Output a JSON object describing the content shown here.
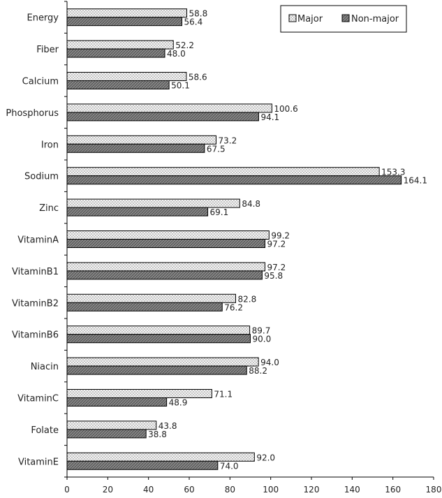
{
  "chart_data": {
    "type": "bar",
    "orientation": "horizontal",
    "categories": [
      "Energy",
      "Fiber",
      "Calcium",
      "Phosphorus",
      "Iron",
      "Sodium",
      "Zinc",
      "VitaminA",
      "VitaminB1",
      "VitaminB2",
      "VitaminB6",
      "Niacin",
      "VitaminC",
      "Folate",
      "VitaminE"
    ],
    "series": [
      {
        "name": "Major",
        "values": [
          58.8,
          52.2,
          58.6,
          100.6,
          73.2,
          153.3,
          84.8,
          99.2,
          97.2,
          82.8,
          89.7,
          94.0,
          71.1,
          43.8,
          92.0
        ],
        "labels": [
          "58.8",
          "52.2",
          "58.6",
          "100.6",
          "73.2",
          "153.3",
          "84.8",
          "99.2",
          "97.2",
          "82.8",
          "89.7",
          "94.0",
          "71.1",
          "43.8",
          "92.0"
        ]
      },
      {
        "name": "Non-major",
        "values": [
          56.4,
          48.0,
          50.1,
          94.1,
          67.5,
          164.1,
          69.1,
          97.2,
          95.8,
          76.2,
          90.0,
          88.2,
          48.9,
          38.8,
          74.0
        ],
        "labels": [
          "56.4",
          "48.0",
          "50.1",
          "94.1",
          "67.5",
          "164.1",
          "69.1",
          "97.2",
          "95.8",
          "76.2",
          "90.0",
          "88.2",
          "48.9",
          "38.8",
          "74.0"
        ]
      }
    ],
    "xlim": [
      0,
      180
    ],
    "xticks": [
      "0",
      "20",
      "40",
      "60",
      "80",
      "100",
      "120",
      "140",
      "160",
      "180"
    ],
    "title": "",
    "xlabel": "",
    "ylabel": "",
    "grid": false,
    "legend_position": "top-right",
    "colors": {
      "major_fill": "#f4f4f4",
      "major_dots": "#555555",
      "nonmajor_fill": "#8a8a8a",
      "nonmajor_hatch": "#4a4a4a",
      "axis": "#000000"
    }
  }
}
